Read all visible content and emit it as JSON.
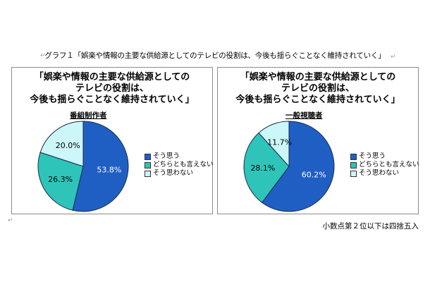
{
  "caption": "グラフ１「娯楽や情報の主要な供給源としてのテレビの役割は、今後も揺らぐことなく維持されていく」",
  "paragraph_mark": "↵",
  "footnote": "小数点第２位以下は四捨五入",
  "chart_data": [
    {
      "type": "pie",
      "title": [
        "「娯楽や情報の主要な供給源としての",
        "テレビの役割は、",
        "今後も揺らぐことなく維持されていく」"
      ],
      "subtitle": "番組制作者",
      "categories": [
        "そう思う",
        "どちらとも言えない",
        "そう思わない"
      ],
      "values": [
        53.8,
        26.3,
        20.0
      ],
      "value_labels": [
        "53.8%",
        "26.3%",
        "20.0%"
      ],
      "colors": [
        "#1f5fc4",
        "#2ec4b9",
        "#ccf6f8"
      ],
      "legend_position": "right"
    },
    {
      "type": "pie",
      "title": [
        "「娯楽や情報の主要な供給源としての",
        "テレビの役割は、",
        "今後も揺らぐことなく維持されていく」"
      ],
      "subtitle": "一般視聴者",
      "categories": [
        "そう思う",
        "どちらとも言えない",
        "そう思わない"
      ],
      "values": [
        60.2,
        28.1,
        11.7
      ],
      "value_labels": [
        "60.2%",
        "28.1%",
        "11.7%"
      ],
      "colors": [
        "#1f5fc4",
        "#2ec4b9",
        "#ccf6f8"
      ],
      "legend_position": "right"
    }
  ]
}
